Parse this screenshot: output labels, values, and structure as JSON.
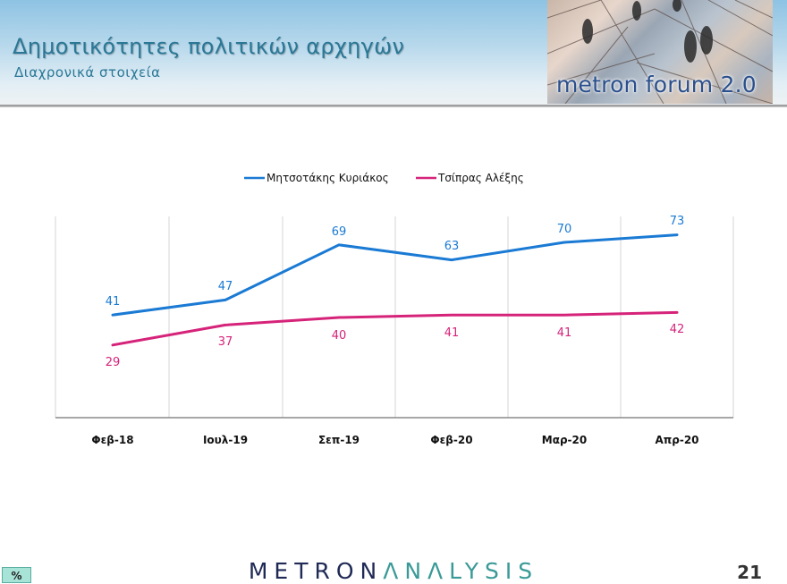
{
  "header": {
    "title": "Δημοτικότητες πολιτικών αρχηγών",
    "subtitle": "Διαχρονικά στοιχεία",
    "logo_text": "metron forum 2.0"
  },
  "footer": {
    "brand_part1": "METRON",
    "brand_part2": "ΛNΛLYSIS",
    "page_number": "21",
    "unit_badge": "%"
  },
  "colors": {
    "series_1": "#1a7ad4",
    "series_2": "#d6237a",
    "title": "#2a7896"
  },
  "chart_data": {
    "type": "line",
    "title": "",
    "xlabel": "",
    "ylabel": "",
    "categories": [
      "Φεβ-18",
      "Ιουλ-19",
      "Σεπ-19",
      "Φεβ-20",
      "Μαρ-20",
      "Απρ-20"
    ],
    "series": [
      {
        "name": "Μητσοτάκης Κυριάκος",
        "color": "#1a7ad4",
        "values": [
          41,
          47,
          69,
          63,
          70,
          73
        ]
      },
      {
        "name": "Τσίπρας Αλέξης",
        "color": "#d6237a",
        "values": [
          29,
          37,
          40,
          41,
          41,
          42
        ]
      }
    ],
    "ylim": [
      0,
      80
    ],
    "grid": "vertical",
    "legend_position": "top",
    "data_labels": true,
    "unit": "%"
  }
}
